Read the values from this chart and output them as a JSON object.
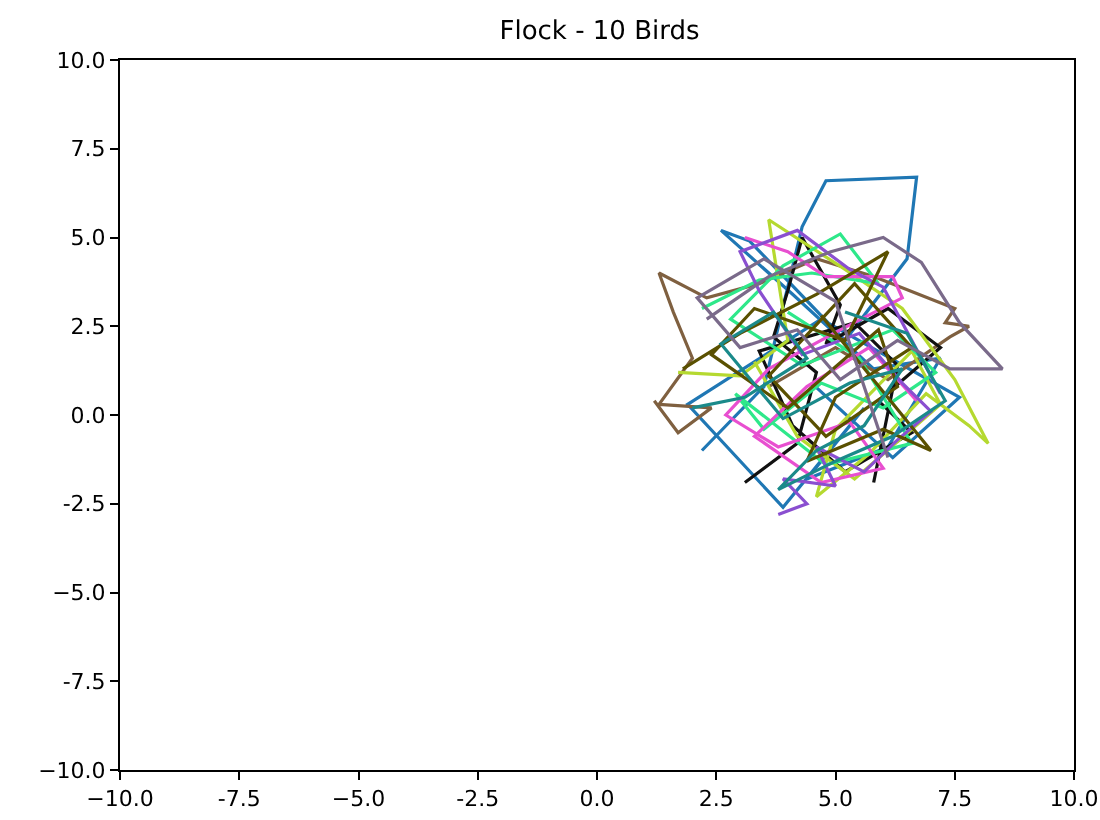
{
  "chart_data": {
    "type": "line",
    "title": "Flock - 10 Birds",
    "xlim": [
      -10,
      10
    ],
    "ylim": [
      -10,
      10
    ],
    "xticks": [
      {
        "value": -10,
        "label": "−10.0"
      },
      -7.5,
      {
        "value": -5,
        "label": "−5.0"
      },
      -2.5,
      {
        "value": 0,
        "label": "0.0"
      },
      2.5,
      {
        "value": 5,
        "label": "5.0"
      },
      7.5,
      {
        "value": 10,
        "label": "10.0"
      }
    ],
    "yticks": [
      {
        "value": -10,
        "label": "−10.0"
      },
      -7.5,
      {
        "value": -5,
        "label": "−5.0"
      },
      -2.5,
      {
        "value": 0,
        "label": "0.0"
      },
      2.5,
      {
        "value": 5,
        "label": "5.0"
      },
      7.5,
      {
        "value": 10,
        "label": "10.0"
      }
    ],
    "grid": false,
    "marker": "none",
    "line_style": "solid",
    "series": [
      {
        "color": "#1f77b4",
        "x": [
          2.2,
          3.5,
          4.3,
          4.8,
          6.7,
          6.5,
          5.2,
          3.2,
          2.6,
          4.1,
          5.8,
          7.2,
          6.1,
          4.4,
          5.6,
          3.9,
          1.9,
          4.7,
          7.6,
          6.2,
          4.5
        ],
        "values": [
          -1.0,
          0.8,
          5.3,
          6.6,
          6.7,
          4.4,
          2.1,
          4.9,
          5.2,
          3.4,
          1.3,
          1.6,
          -0.9,
          -1.8,
          0.2,
          -2.6,
          0.3,
          2.7,
          0.5,
          -1.2,
          0.9
        ]
      },
      {
        "color": "#7f6040",
        "x": [
          1.2,
          1.7,
          2.4,
          1.3,
          2.0,
          1.6,
          1.3,
          2.3,
          3.4,
          4.6,
          5.8,
          7.5,
          7.3,
          7.8,
          7.4,
          6.1,
          5.0,
          3.6
        ],
        "values": [
          0.4,
          -0.5,
          0.2,
          0.3,
          1.6,
          2.9,
          4.0,
          3.3,
          3.7,
          4.4,
          3.9,
          3.0,
          2.6,
          2.5,
          2.2,
          1.0,
          1.9,
          0.8
        ]
      },
      {
        "color": "#111111",
        "x": [
          3.1,
          4.2,
          4.6,
          3.7,
          4.0,
          4.3,
          5.1,
          4.8,
          6.1,
          7.2,
          5.9,
          6.6,
          5.2,
          4.1,
          3.4,
          5.4,
          6.3,
          5.8
        ],
        "values": [
          -1.9,
          -0.8,
          1.2,
          2.2,
          3.5,
          5.0,
          3.1,
          2.0,
          3.0,
          1.9,
          0.4,
          -0.5,
          -1.6,
          -0.3,
          1.8,
          2.6,
          1.4,
          -1.9
        ]
      },
      {
        "color": "#b5d930",
        "x": [
          1.7,
          3.0,
          4.0,
          3.6,
          5.2,
          6.4,
          7.5,
          8.2,
          7.8,
          6.9,
          5.7,
          4.6,
          5.0,
          6.6,
          7.2,
          5.4,
          4.2,
          3.3
        ],
        "values": [
          1.2,
          1.1,
          2.1,
          5.5,
          4.1,
          3.0,
          1.0,
          -0.8,
          -0.3,
          0.6,
          -1.1,
          -2.3,
          -0.4,
          1.8,
          0.3,
          -1.8,
          -0.6,
          1.5
        ]
      },
      {
        "color": "#2ee88a",
        "x": [
          2.2,
          3.4,
          4.5,
          5.9,
          5.1,
          3.9,
          2.8,
          4.3,
          6.2,
          7.1,
          6.0,
          4.7,
          3.5,
          2.9,
          4.8,
          6.6,
          5.5,
          4.0
        ],
        "values": [
          3.0,
          3.8,
          4.0,
          3.7,
          5.1,
          4.2,
          2.7,
          1.4,
          2.4,
          1.2,
          0.2,
          0.9,
          -0.4,
          0.6,
          -1.4,
          -0.8,
          1.6,
          2.9
        ]
      },
      {
        "color": "#e84fd0",
        "x": [
          3.1,
          4.0,
          4.8,
          6.2,
          6.4,
          5.1,
          3.6,
          2.7,
          3.8,
          5.3,
          6.0,
          4.7,
          3.3,
          4.4,
          5.7,
          6.7
        ],
        "values": [
          5.0,
          4.6,
          3.9,
          3.9,
          3.3,
          2.4,
          1.3,
          0.0,
          -0.9,
          -0.2,
          -1.5,
          -1.9,
          -0.6,
          0.8,
          1.9,
          0.4
        ]
      },
      {
        "color": "#8a4fd0",
        "x": [
          3.8,
          4.4,
          3.9,
          5.0,
          4.6,
          5.6,
          6.3,
          7.0,
          6.4,
          5.5,
          4.3,
          3.4,
          3.0,
          4.2,
          5.3,
          6.0,
          7.2
        ],
        "values": [
          -2.8,
          -2.5,
          -1.8,
          -2.0,
          -0.9,
          -1.6,
          -0.7,
          0.1,
          0.9,
          2.3,
          1.7,
          3.5,
          4.6,
          5.2,
          4.1,
          3.6,
          0.6
        ]
      },
      {
        "color": "#5a5000",
        "x": [
          1.8,
          3.0,
          4.6,
          6.1,
          5.2,
          3.3,
          2.4,
          4.0,
          5.9,
          6.3,
          4.8,
          3.6,
          5.4,
          6.6,
          5.0,
          4.4,
          6.0,
          7.0,
          4.7
        ],
        "values": [
          1.3,
          2.3,
          3.4,
          4.6,
          2.1,
          3.0,
          1.7,
          0.2,
          2.4,
          0.8,
          -0.6,
          1.1,
          3.7,
          1.9,
          0.5,
          -1.3,
          -0.4,
          -1.0,
          2.8
        ]
      },
      {
        "color": "#1a8a8a",
        "x": [
          2.0,
          3.1,
          4.4,
          3.7,
          2.6,
          3.9,
          5.3,
          6.4,
          5.6,
          4.6,
          3.8,
          5.0,
          6.2,
          7.3,
          6.5,
          5.2
        ],
        "values": [
          0.2,
          0.5,
          1.6,
          2.9,
          2.0,
          -0.1,
          0.9,
          1.3,
          -0.3,
          -1.0,
          -2.1,
          -1.3,
          -0.6,
          0.4,
          2.3,
          2.9
        ]
      },
      {
        "color": "#7a6a8a",
        "x": [
          2.3,
          3.6,
          4.9,
          6.0,
          6.8,
          7.6,
          8.5,
          7.4,
          6.3,
          5.1,
          4.2,
          3.0,
          2.1,
          3.5,
          5.0,
          6.1
        ],
        "values": [
          2.7,
          3.9,
          4.6,
          5.0,
          4.3,
          2.6,
          1.3,
          1.3,
          2.1,
          1.0,
          2.4,
          1.9,
          3.3,
          4.4,
          3.2,
          -1.2
        ]
      }
    ]
  }
}
